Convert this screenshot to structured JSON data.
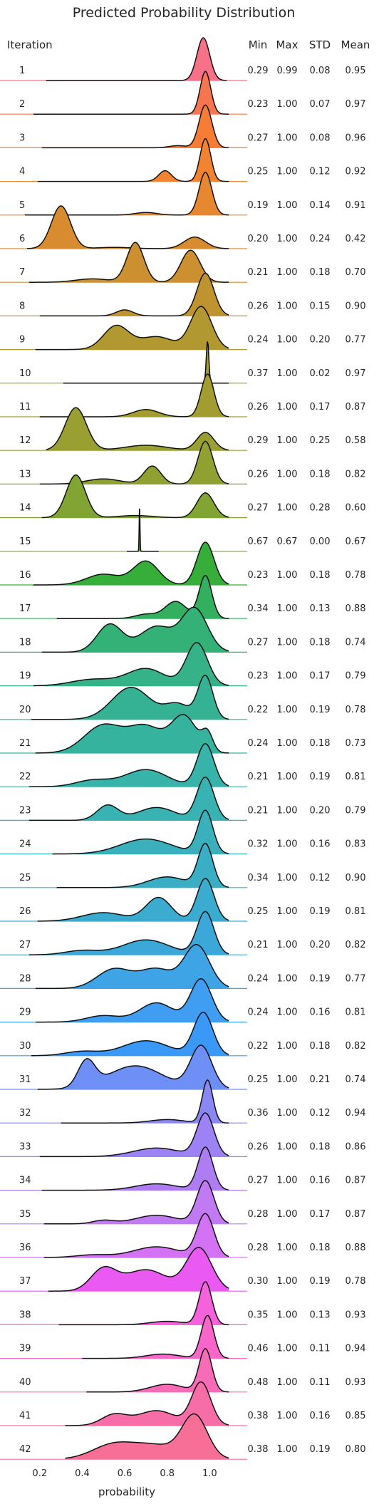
{
  "chart_data": {
    "type": "ridgeline",
    "title": "Predicted Probability Distribution",
    "xlabel": "probability",
    "xlim": [
      0.08,
      1.17
    ],
    "xticks": [
      0.2,
      0.4,
      0.6,
      0.8,
      1.0
    ],
    "xtick_labels": [
      "0.2",
      "0.4",
      "0.6",
      "0.8",
      "1.0"
    ],
    "grid": false,
    "columns": [
      "Iteration",
      "Min",
      "Max",
      "STD",
      "Mean"
    ],
    "rows": [
      {
        "iteration": "1",
        "min": "0.29",
        "max": "0.99",
        "std": "0.08",
        "mean": "0.95",
        "color": "#f77189",
        "peaks": [
          [
            0.97,
            0.03,
            1.0
          ]
        ]
      },
      {
        "iteration": "2",
        "min": "0.23",
        "max": "1.00",
        "std": "0.07",
        "mean": "0.97",
        "color": "#f7754f",
        "peaks": [
          [
            0.98,
            0.025,
            1.0
          ]
        ]
      },
      {
        "iteration": "3",
        "min": "0.27",
        "max": "1.00",
        "std": "0.08",
        "mean": "0.96",
        "color": "#f77d34",
        "peaks": [
          [
            0.98,
            0.03,
            1.0
          ],
          [
            0.85,
            0.04,
            0.05
          ]
        ]
      },
      {
        "iteration": "4",
        "min": "0.25",
        "max": "1.00",
        "std": "0.12",
        "mean": "0.92",
        "color": "#f28330",
        "peaks": [
          [
            0.98,
            0.025,
            1.0
          ],
          [
            0.79,
            0.03,
            0.25
          ]
        ]
      },
      {
        "iteration": "5",
        "min": "0.19",
        "max": "1.00",
        "std": "0.14",
        "mean": "0.91",
        "color": "#e7872f",
        "peaks": [
          [
            0.98,
            0.03,
            1.0
          ],
          [
            0.7,
            0.05,
            0.06
          ]
        ]
      },
      {
        "iteration": "6",
        "min": "0.20",
        "max": "1.00",
        "std": "0.24",
        "mean": "0.42",
        "color": "#d98c2f",
        "peaks": [
          [
            0.3,
            0.045,
            1.0
          ],
          [
            0.93,
            0.05,
            0.27
          ],
          [
            0.55,
            0.08,
            0.03
          ]
        ]
      },
      {
        "iteration": "7",
        "min": "0.21",
        "max": "1.00",
        "std": "0.18",
        "mean": "0.70",
        "color": "#cc9030",
        "peaks": [
          [
            0.65,
            0.04,
            0.93
          ],
          [
            0.91,
            0.045,
            0.75
          ],
          [
            0.45,
            0.08,
            0.08
          ]
        ]
      },
      {
        "iteration": "8",
        "min": "0.26",
        "max": "1.00",
        "std": "0.15",
        "mean": "0.90",
        "color": "#bf9430",
        "peaks": [
          [
            0.98,
            0.04,
            1.0
          ],
          [
            0.6,
            0.04,
            0.14
          ]
        ]
      },
      {
        "iteration": "9",
        "min": "0.24",
        "max": "1.00",
        "std": "0.20",
        "mean": "0.77",
        "color": "#b19830",
        "peaks": [
          [
            0.96,
            0.05,
            1.0
          ],
          [
            0.56,
            0.06,
            0.55
          ],
          [
            0.75,
            0.08,
            0.3
          ]
        ]
      },
      {
        "iteration": "10",
        "min": "0.37",
        "max": "1.00",
        "std": "0.02",
        "mean": "0.97",
        "color": "#a59b31",
        "peaks": [
          [
            0.99,
            0.006,
            1.0
          ]
        ]
      },
      {
        "iteration": "11",
        "min": "0.26",
        "max": "1.00",
        "std": "0.17",
        "mean": "0.87",
        "color": "#a39d31",
        "peaks": [
          [
            0.99,
            0.03,
            1.0
          ],
          [
            0.7,
            0.06,
            0.17
          ]
        ]
      },
      {
        "iteration": "12",
        "min": "0.29",
        "max": "1.00",
        "std": "0.25",
        "mean": "0.58",
        "color": "#9a9f31",
        "peaks": [
          [
            0.37,
            0.05,
            1.0
          ],
          [
            0.98,
            0.04,
            0.42
          ],
          [
            0.7,
            0.1,
            0.12
          ]
        ]
      },
      {
        "iteration": "13",
        "min": "0.26",
        "max": "1.00",
        "std": "0.18",
        "mean": "0.82",
        "color": "#90a131",
        "peaks": [
          [
            0.98,
            0.035,
            1.0
          ],
          [
            0.73,
            0.04,
            0.42
          ],
          [
            0.5,
            0.08,
            0.12
          ]
        ]
      },
      {
        "iteration": "14",
        "min": "0.27",
        "max": "1.00",
        "std": "0.28",
        "mean": "0.60",
        "color": "#82a432",
        "peaks": [
          [
            0.37,
            0.045,
            1.0
          ],
          [
            0.98,
            0.04,
            0.58
          ],
          [
            0.65,
            0.08,
            0.05
          ]
        ]
      },
      {
        "iteration": "15",
        "min": "0.67",
        "max": "0.67",
        "std": "0.00",
        "mean": "0.67",
        "color": "#6ea532",
        "peaks": [
          [
            0.67,
            0.002,
            1.0
          ]
        ]
      },
      {
        "iteration": "16",
        "min": "0.23",
        "max": "1.00",
        "std": "0.18",
        "mean": "0.78",
        "color": "#37ae3a",
        "peaks": [
          [
            0.98,
            0.04,
            1.0
          ],
          [
            0.7,
            0.06,
            0.55
          ],
          [
            0.5,
            0.08,
            0.25
          ]
        ]
      },
      {
        "iteration": "17",
        "min": "0.34",
        "max": "1.00",
        "std": "0.13",
        "mean": "0.88",
        "color": "#33b05f",
        "peaks": [
          [
            0.98,
            0.03,
            1.0
          ],
          [
            0.84,
            0.05,
            0.4
          ],
          [
            0.7,
            0.05,
            0.1
          ]
        ]
      },
      {
        "iteration": "18",
        "min": "0.27",
        "max": "1.00",
        "std": "0.18",
        "mean": "0.74",
        "color": "#34b177",
        "peaks": [
          [
            0.93,
            0.06,
            1.0
          ],
          [
            0.53,
            0.06,
            0.65
          ],
          [
            0.75,
            0.08,
            0.6
          ]
        ]
      },
      {
        "iteration": "19",
        "min": "0.23",
        "max": "1.00",
        "std": "0.17",
        "mean": "0.79",
        "color": "#35b287",
        "peaks": [
          [
            0.94,
            0.05,
            1.0
          ],
          [
            0.7,
            0.09,
            0.4
          ],
          [
            0.45,
            0.1,
            0.15
          ]
        ]
      },
      {
        "iteration": "20",
        "min": "0.22",
        "max": "1.00",
        "std": "0.19",
        "mean": "0.78",
        "color": "#35b294",
        "peaks": [
          [
            0.98,
            0.035,
            1.0
          ],
          [
            0.63,
            0.09,
            0.75
          ],
          [
            0.85,
            0.06,
            0.35
          ]
        ]
      },
      {
        "iteration": "21",
        "min": "0.24",
        "max": "1.00",
        "std": "0.18",
        "mean": "0.73",
        "color": "#36b39f",
        "peaks": [
          [
            0.88,
            0.06,
            0.85
          ],
          [
            0.99,
            0.025,
            0.4
          ],
          [
            0.5,
            0.09,
            0.65
          ],
          [
            0.7,
            0.08,
            0.6
          ]
        ]
      },
      {
        "iteration": "22",
        "min": "0.21",
        "max": "1.00",
        "std": "0.19",
        "mean": "0.81",
        "color": "#37b3a9",
        "peaks": [
          [
            0.98,
            0.04,
            1.0
          ],
          [
            0.7,
            0.1,
            0.4
          ],
          [
            0.45,
            0.08,
            0.15
          ]
        ]
      },
      {
        "iteration": "23",
        "min": "0.21",
        "max": "1.00",
        "std": "0.20",
        "mean": "0.79",
        "color": "#38b2b2",
        "peaks": [
          [
            0.98,
            0.04,
            1.0
          ],
          [
            0.52,
            0.05,
            0.35
          ],
          [
            0.75,
            0.09,
            0.3
          ]
        ]
      },
      {
        "iteration": "24",
        "min": "0.32",
        "max": "1.00",
        "std": "0.16",
        "mean": "0.83",
        "color": "#39b0bc",
        "peaks": [
          [
            0.98,
            0.035,
            1.0
          ],
          [
            0.7,
            0.12,
            0.35
          ]
        ]
      },
      {
        "iteration": "25",
        "min": "0.34",
        "max": "1.00",
        "std": "0.12",
        "mean": "0.90",
        "color": "#3aaec5",
        "peaks": [
          [
            0.98,
            0.035,
            1.0
          ],
          [
            0.8,
            0.09,
            0.25
          ]
        ]
      },
      {
        "iteration": "26",
        "min": "0.25",
        "max": "1.00",
        "std": "0.19",
        "mean": "0.81",
        "color": "#3babcf",
        "peaks": [
          [
            0.98,
            0.04,
            1.0
          ],
          [
            0.76,
            0.06,
            0.55
          ],
          [
            0.5,
            0.1,
            0.2
          ]
        ]
      },
      {
        "iteration": "27",
        "min": "0.21",
        "max": "1.00",
        "std": "0.20",
        "mean": "0.82",
        "color": "#3ca8da",
        "peaks": [
          [
            0.98,
            0.04,
            1.0
          ],
          [
            0.7,
            0.11,
            0.35
          ],
          [
            0.4,
            0.08,
            0.1
          ]
        ]
      },
      {
        "iteration": "28",
        "min": "0.24",
        "max": "1.00",
        "std": "0.19",
        "mean": "0.77",
        "color": "#3ea4e6",
        "peaks": [
          [
            0.94,
            0.06,
            1.0
          ],
          [
            0.55,
            0.08,
            0.45
          ],
          [
            0.75,
            0.08,
            0.45
          ]
        ]
      },
      {
        "iteration": "29",
        "min": "0.24",
        "max": "1.00",
        "std": "0.16",
        "mean": "0.81",
        "color": "#3f9df2",
        "peaks": [
          [
            0.96,
            0.05,
            1.0
          ],
          [
            0.75,
            0.08,
            0.45
          ],
          [
            0.5,
            0.08,
            0.15
          ]
        ]
      },
      {
        "iteration": "30",
        "min": "0.22",
        "max": "1.00",
        "std": "0.18",
        "mean": "0.82",
        "color": "#3a98f7",
        "peaks": [
          [
            0.97,
            0.045,
            1.0
          ],
          [
            0.7,
            0.11,
            0.35
          ],
          [
            0.4,
            0.08,
            0.1
          ]
        ]
      },
      {
        "iteration": "31",
        "min": "0.25",
        "max": "1.00",
        "std": "0.21",
        "mean": "0.74",
        "color": "#6e8ff5",
        "peaks": [
          [
            0.96,
            0.05,
            1.0
          ],
          [
            0.42,
            0.04,
            0.6
          ],
          [
            0.65,
            0.13,
            0.55
          ]
        ]
      },
      {
        "iteration": "32",
        "min": "0.36",
        "max": "1.00",
        "std": "0.12",
        "mean": "0.94",
        "color": "#8987f4",
        "peaks": [
          [
            0.99,
            0.025,
            1.0
          ],
          [
            0.8,
            0.08,
            0.08
          ]
        ]
      },
      {
        "iteration": "33",
        "min": "0.26",
        "max": "1.00",
        "std": "0.18",
        "mean": "0.86",
        "color": "#9c82f4",
        "peaks": [
          [
            0.98,
            0.04,
            1.0
          ],
          [
            0.75,
            0.11,
            0.2
          ]
        ]
      },
      {
        "iteration": "34",
        "min": "0.27",
        "max": "1.00",
        "std": "0.16",
        "mean": "0.87",
        "color": "#ae7df4",
        "peaks": [
          [
            0.98,
            0.035,
            1.0
          ],
          [
            0.75,
            0.1,
            0.15
          ]
        ]
      },
      {
        "iteration": "35",
        "min": "0.28",
        "max": "1.00",
        "std": "0.17",
        "mean": "0.87",
        "color": "#c27af3",
        "peaks": [
          [
            0.98,
            0.04,
            1.0
          ],
          [
            0.75,
            0.1,
            0.2
          ],
          [
            0.5,
            0.05,
            0.08
          ]
        ]
      },
      {
        "iteration": "36",
        "min": "0.28",
        "max": "1.00",
        "std": "0.18",
        "mean": "0.88",
        "color": "#d372f4",
        "peaks": [
          [
            0.98,
            0.04,
            1.0
          ],
          [
            0.75,
            0.11,
            0.25
          ],
          [
            0.45,
            0.08,
            0.06
          ]
        ]
      },
      {
        "iteration": "37",
        "min": "0.30",
        "max": "1.00",
        "std": "0.19",
        "mean": "0.78",
        "color": "#ea5af3",
        "peaks": [
          [
            0.95,
            0.06,
            1.0
          ],
          [
            0.5,
            0.06,
            0.5
          ],
          [
            0.7,
            0.1,
            0.5
          ]
        ]
      },
      {
        "iteration": "38",
        "min": "0.35",
        "max": "1.00",
        "std": "0.13",
        "mean": "0.93",
        "color": "#f661dc",
        "peaks": [
          [
            0.98,
            0.03,
            1.0
          ],
          [
            0.8,
            0.08,
            0.08
          ]
        ]
      },
      {
        "iteration": "39",
        "min": "0.46",
        "max": "1.00",
        "std": "0.11",
        "mean": "0.94",
        "color": "#f766c8",
        "peaks": [
          [
            0.99,
            0.03,
            1.0
          ],
          [
            0.78,
            0.08,
            0.1
          ]
        ]
      },
      {
        "iteration": "40",
        "min": "0.48",
        "max": "1.00",
        "std": "0.11",
        "mean": "0.93",
        "color": "#f76bb7",
        "peaks": [
          [
            0.98,
            0.03,
            1.0
          ],
          [
            0.8,
            0.08,
            0.18
          ]
        ]
      },
      {
        "iteration": "41",
        "min": "0.38",
        "max": "1.00",
        "std": "0.16",
        "mean": "0.85",
        "color": "#f76da7",
        "peaks": [
          [
            0.96,
            0.045,
            1.0
          ],
          [
            0.55,
            0.06,
            0.25
          ],
          [
            0.75,
            0.09,
            0.35
          ]
        ]
      },
      {
        "iteration": "42",
        "min": "0.38",
        "max": "1.00",
        "std": "0.19",
        "mean": "0.80",
        "color": "#f76f96",
        "peaks": [
          [
            0.93,
            0.06,
            1.0
          ],
          [
            0.55,
            0.1,
            0.35
          ],
          [
            0.75,
            0.1,
            0.3
          ]
        ]
      }
    ]
  }
}
